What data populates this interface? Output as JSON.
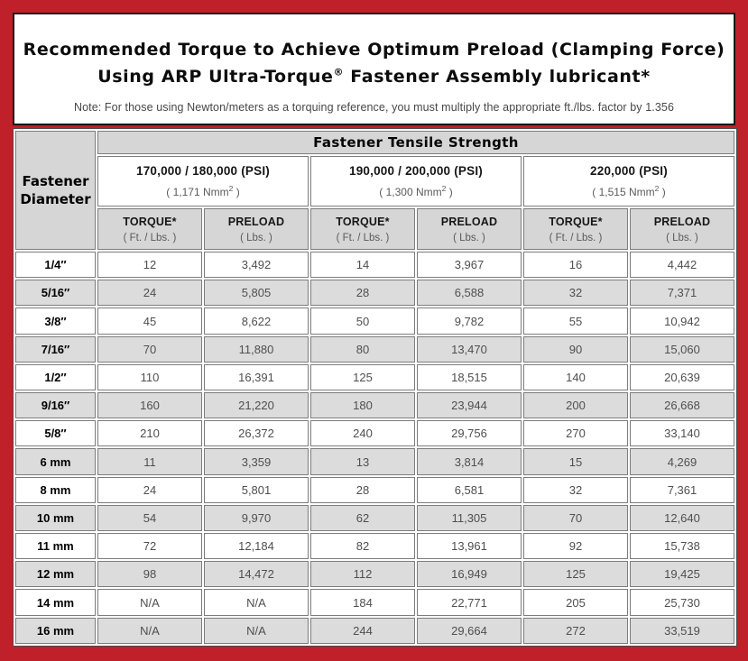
{
  "colors": {
    "frame_red": "#c0202a",
    "header_gray": "#d6d6d6",
    "stripe_gray": "#dcdcdc",
    "cell_border": "#7c7c7c",
    "data_text": "#4f4f4f"
  },
  "title": {
    "line1": "Recommended Torque to Achieve Optimum Preload (Clamping Force)",
    "line2_pre": "Using ARP Ultra-Torque",
    "line2_sup": "®",
    "line2_post": " Fastener Assembly lubricant*",
    "note": "Note: For those using Newton/meters as a torquing reference, you must multiply the appropriate ft./lbs. factor by 1.356"
  },
  "table": {
    "corner_header": "Fastener Diameter",
    "tensile_header": "Fastener Tensile Strength",
    "groups": [
      {
        "psi": "170,000 / 180,000 (PSI)",
        "nmm_pre": "( 1,171 Nmm",
        "nmm_sup": "2",
        "nmm_post": " )"
      },
      {
        "psi": "190,000 / 200,000 (PSI)",
        "nmm_pre": "( 1,300 Nmm",
        "nmm_sup": "2",
        "nmm_post": " )"
      },
      {
        "psi": "220,000 (PSI)",
        "nmm_pre": "( 1,515 Nmm",
        "nmm_sup": "2",
        "nmm_post": " )"
      }
    ],
    "sub_headers": [
      {
        "main": "TORQUE*",
        "sub": "( Ft. / Lbs. )"
      },
      {
        "main": "PRELOAD",
        "sub": "( Lbs. )"
      },
      {
        "main": "TORQUE*",
        "sub": "( Ft. / Lbs. )"
      },
      {
        "main": "PRELOAD",
        "sub": "( Lbs. )"
      },
      {
        "main": "TORQUE*",
        "sub": "( Ft. / Lbs. )"
      },
      {
        "main": "PRELOAD",
        "sub": "( Lbs. )"
      }
    ],
    "rows": [
      {
        "diameter": "1/4″",
        "values": [
          "12",
          "3,492",
          "14",
          "3,967",
          "16",
          "4,442"
        ]
      },
      {
        "diameter": "5/16″",
        "values": [
          "24",
          "5,805",
          "28",
          "6,588",
          "32",
          "7,371"
        ]
      },
      {
        "diameter": "3/8″",
        "values": [
          "45",
          "8,622",
          "50",
          "9,782",
          "55",
          "10,942"
        ]
      },
      {
        "diameter": "7/16″",
        "values": [
          "70",
          "11,880",
          "80",
          "13,470",
          "90",
          "15,060"
        ]
      },
      {
        "diameter": "1/2″",
        "values": [
          "110",
          "16,391",
          "125",
          "18,515",
          "140",
          "20,639"
        ]
      },
      {
        "diameter": "9/16″",
        "values": [
          "160",
          "21,220",
          "180",
          "23,944",
          "200",
          "26,668"
        ]
      },
      {
        "diameter": "5/8″",
        "values": [
          "210",
          "26,372",
          "240",
          "29,756",
          "270",
          "33,140"
        ]
      },
      {
        "diameter": "6 mm",
        "values": [
          "11",
          "3,359",
          "13",
          "3,814",
          "15",
          "4,269"
        ]
      },
      {
        "diameter": "8 mm",
        "values": [
          "24",
          "5,801",
          "28",
          "6,581",
          "32",
          "7,361"
        ]
      },
      {
        "diameter": "10 mm",
        "values": [
          "54",
          "9,970",
          "62",
          "11,305",
          "70",
          "12,640"
        ]
      },
      {
        "diameter": "11 mm",
        "values": [
          "72",
          "12,184",
          "82",
          "13,961",
          "92",
          "15,738"
        ]
      },
      {
        "diameter": "12 mm",
        "values": [
          "98",
          "14,472",
          "112",
          "16,949",
          "125",
          "19,425"
        ]
      },
      {
        "diameter": "14 mm",
        "values": [
          "N/A",
          "N/A",
          "184",
          "22,771",
          "205",
          "25,730"
        ]
      },
      {
        "diameter": "16 mm",
        "values": [
          "N/A",
          "N/A",
          "244",
          "29,664",
          "272",
          "33,519"
        ]
      }
    ]
  }
}
